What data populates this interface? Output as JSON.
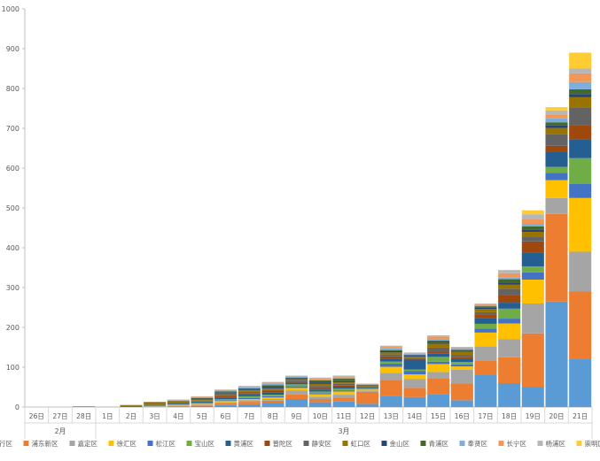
{
  "chart_data": {
    "type": "bar",
    "stacked": true,
    "title": "",
    "xlabel": "",
    "ylabel": "",
    "ylim": [
      0,
      1000
    ],
    "yticks": [
      0,
      100,
      200,
      300,
      400,
      500,
      600,
      700,
      800,
      900,
      1000
    ],
    "grid": false,
    "legend": "bottom",
    "categories": [
      "26日",
      "27日",
      "28日",
      "1日",
      "2日",
      "3日",
      "4日",
      "5日",
      "6日",
      "7日",
      "8日",
      "9日",
      "10日",
      "11日",
      "12日",
      "13日",
      "14日",
      "15日",
      "16日",
      "17日",
      "18日",
      "19日",
      "20日",
      "21日"
    ],
    "groups": [
      {
        "label": "2月",
        "start": 0,
        "end": 2
      },
      {
        "label": "3月",
        "start": 3,
        "end": 23
      }
    ],
    "series": [
      {
        "name": "闵行区",
        "color": "#5B9BD5",
        "values": [
          0,
          0,
          0,
          0,
          0,
          0,
          2,
          3,
          5,
          7,
          10,
          20,
          12,
          14,
          8,
          28,
          25,
          32,
          17,
          82,
          60,
          50,
          265,
          120
        ]
      },
      {
        "name": "浦东新区",
        "color": "#ED7D31",
        "values": [
          0,
          0,
          0,
          0,
          0,
          1,
          1,
          2,
          4,
          6,
          6,
          12,
          8,
          10,
          30,
          40,
          23,
          40,
          42,
          35,
          65,
          135,
          220,
          170
        ]
      },
      {
        "name": "嘉定区",
        "color": "#A5A5A5",
        "values": [
          0,
          0,
          0,
          0,
          0,
          0,
          1,
          1,
          3,
          4,
          4,
          10,
          6,
          7,
          3,
          18,
          22,
          16,
          35,
          35,
          45,
          75,
          40,
          100
        ]
      },
      {
        "name": "徐汇区",
        "color": "#FFC000",
        "values": [
          0,
          0,
          0,
          0,
          0,
          1,
          1,
          2,
          3,
          3,
          4,
          6,
          6,
          8,
          3,
          15,
          12,
          20,
          8,
          35,
          40,
          60,
          45,
          135
        ]
      },
      {
        "name": "松江区",
        "color": "#4472C4",
        "values": [
          0,
          0,
          0,
          0,
          0,
          0,
          1,
          1,
          2,
          3,
          3,
          4,
          3,
          3,
          1,
          8,
          8,
          6,
          5,
          10,
          12,
          18,
          18,
          35
        ]
      },
      {
        "name": "宝山区",
        "color": "#70AD47",
        "values": [
          0,
          0,
          0,
          0,
          0,
          1,
          1,
          2,
          3,
          4,
          4,
          5,
          4,
          4,
          2,
          5,
          4,
          12,
          6,
          12,
          25,
          15,
          15,
          65
        ]
      },
      {
        "name": "黄浦区",
        "color": "#255E91",
        "values": [
          0,
          0,
          0,
          0,
          1,
          1,
          2,
          3,
          4,
          5,
          6,
          4,
          5,
          5,
          2,
          8,
          25,
          8,
          8,
          15,
          15,
          35,
          38,
          48
        ]
      },
      {
        "name": "普陀区",
        "color": "#9E480E",
        "values": [
          0,
          0,
          0,
          0,
          1,
          2,
          1,
          1,
          3,
          3,
          3,
          3,
          4,
          3,
          1,
          5,
          2,
          5,
          5,
          8,
          20,
          28,
          15,
          35
        ]
      },
      {
        "name": "静安区",
        "color": "#636363",
        "values": [
          0,
          0,
          0,
          0,
          0,
          1,
          1,
          1,
          3,
          3,
          3,
          3,
          5,
          4,
          1,
          5,
          2,
          10,
          5,
          6,
          15,
          12,
          30,
          45
        ]
      },
      {
        "name": "虹口区",
        "color": "#997300",
        "values": [
          0,
          0,
          1,
          0,
          2,
          3,
          3,
          3,
          4,
          4,
          4,
          3,
          5,
          4,
          2,
          5,
          4,
          10,
          8,
          8,
          10,
          12,
          15,
          25
        ]
      },
      {
        "name": "金山区",
        "color": "#264478",
        "values": [
          0,
          0,
          0,
          0,
          0,
          1,
          1,
          2,
          2,
          2,
          3,
          2,
          4,
          3,
          1,
          3,
          2,
          3,
          2,
          3,
          6,
          6,
          6,
          8
        ]
      },
      {
        "name": "青浦区",
        "color": "#43682B",
        "values": [
          0,
          0,
          0,
          0,
          1,
          1,
          1,
          2,
          3,
          3,
          5,
          2,
          5,
          6,
          2,
          3,
          2,
          5,
          3,
          4,
          8,
          8,
          8,
          12
        ]
      },
      {
        "name": "奉贤区",
        "color": "#7CAFDD",
        "values": [
          0,
          0,
          0,
          0,
          0,
          0,
          1,
          1,
          2,
          2,
          3,
          2,
          2,
          3,
          1,
          4,
          2,
          4,
          2,
          3,
          5,
          6,
          10,
          18
        ]
      },
      {
        "name": "长宁区",
        "color": "#F1975A",
        "values": [
          0,
          0,
          1,
          1,
          0,
          1,
          1,
          2,
          2,
          2,
          3,
          2,
          3,
          3,
          1,
          4,
          2,
          6,
          3,
          2,
          10,
          12,
          10,
          22
        ]
      },
      {
        "name": "杨浦区",
        "color": "#B7B7B7",
        "values": [
          0,
          0,
          0,
          0,
          0,
          0,
          1,
          1,
          1,
          2,
          2,
          1,
          2,
          2,
          1,
          3,
          2,
          3,
          2,
          2,
          8,
          12,
          10,
          12
        ]
      },
      {
        "name": "崇明区",
        "color": "#FFCD33",
        "values": [
          0,
          0,
          0,
          0,
          0,
          0,
          0,
          0,
          0,
          0,
          0,
          0,
          0,
          0,
          0,
          0,
          0,
          0,
          0,
          0,
          0,
          10,
          8,
          40
        ]
      }
    ]
  }
}
